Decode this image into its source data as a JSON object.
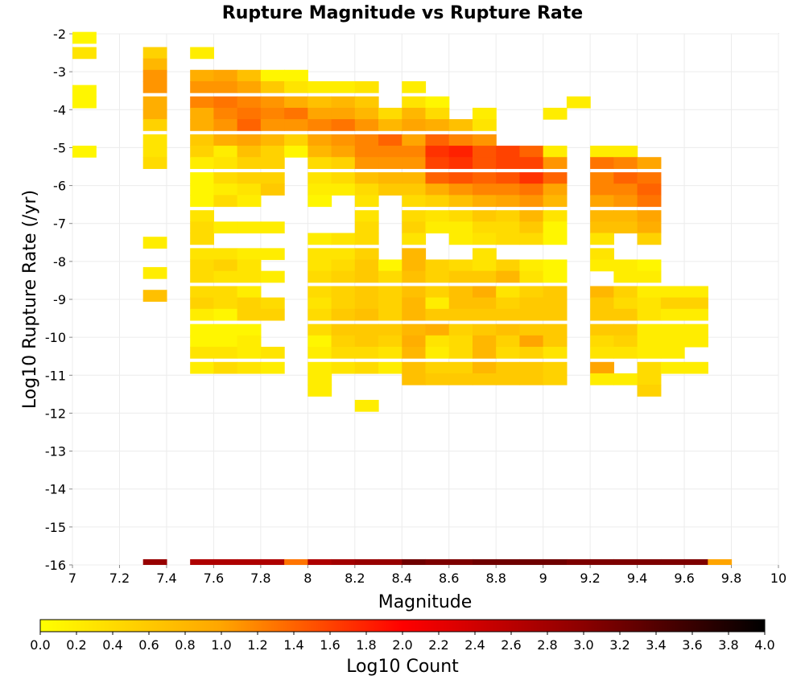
{
  "chart_data": {
    "type": "heatmap",
    "title": "Rupture Magnitude vs Rupture Rate",
    "xlabel": "Magnitude",
    "ylabel": "Log10 Rupture Rate (/yr)",
    "xlim": [
      7,
      10
    ],
    "ylim": [
      -16,
      -2
    ],
    "x_ticks": [
      "7",
      "7.2",
      "7.4",
      "7.6",
      "7.8",
      "8",
      "8.2",
      "8.4",
      "8.6",
      "8.8",
      "9",
      "9.2",
      "9.4",
      "9.6",
      "9.8",
      "10"
    ],
    "y_ticks": [
      "-2",
      "-3",
      "-4",
      "-5",
      "-6",
      "-7",
      "-8",
      "-9",
      "-10",
      "-11",
      "-12",
      "-13",
      "-14",
      "-15",
      "-16"
    ],
    "x_bin_width": 0.1,
    "y_bin_height": 0.3,
    "grid": true,
    "colorbar": {
      "label": "Log10 Count",
      "range": [
        0,
        4
      ],
      "ticks": [
        "0.0",
        "0.2",
        "0.4",
        "0.6",
        "0.8",
        "1.0",
        "1.2",
        "1.4",
        "1.6",
        "1.8",
        "2.0",
        "2.2",
        "2.4",
        "2.6",
        "2.8",
        "3.0",
        "3.2",
        "3.4",
        "3.6",
        "3.8",
        "4.0"
      ],
      "colors": [
        "#ffff00",
        "#ffa500",
        "#ff0000",
        "#8b0000",
        "#000000"
      ]
    },
    "columns": [
      {
        "x": 7.0,
        "y": [
          -2.1,
          -2.5,
          -3.5,
          -3.8,
          -5.1
        ],
        "v": [
          0.1,
          0.3,
          0.1,
          0.1,
          0.1
        ]
      },
      {
        "x": 7.3,
        "y": [
          -2.5,
          -2.8,
          -3.1,
          -3.4,
          -3.8,
          -4.1,
          -4.4,
          -4.8,
          -5.1,
          -5.4,
          -7.5,
          -8.3,
          -8.9
        ],
        "v": [
          0.5,
          0.8,
          1.1,
          1.1,
          0.9,
          0.9,
          0.5,
          0.3,
          0.3,
          0.4,
          0.2,
          0.2,
          0.7
        ]
      },
      {
        "x": 7.5,
        "y": [
          -2.5,
          -3.1,
          -3.4,
          -3.8,
          -4.1,
          -4.4,
          -4.8,
          -5.1,
          -5.4,
          -5.8,
          -6.1,
          -6.4,
          -6.8,
          -7.1,
          -7.4,
          -7.8,
          -8.1,
          -8.4,
          -8.8,
          -9.1,
          -9.4,
          -9.8,
          -10.1,
          -10.4,
          -10.8
        ],
        "v": [
          0.2,
          0.9,
          1.1,
          1.2,
          0.9,
          0.9,
          0.6,
          0.5,
          0.2,
          0.1,
          0.1,
          0.1,
          0.3,
          0.4,
          0.4,
          0.3,
          0.4,
          0.4,
          0.4,
          0.5,
          0.2,
          0.1,
          0.1,
          0.3,
          0.2
        ]
      },
      {
        "x": 7.6,
        "y": [
          -3.1,
          -3.4,
          -3.8,
          -4.1,
          -4.4,
          -4.8,
          -5.1,
          -5.4,
          -5.8,
          -6.1,
          -6.4,
          -7.1,
          -7.8,
          -8.1,
          -8.4,
          -8.8,
          -9.1,
          -9.4,
          -9.8,
          -10.1,
          -10.4,
          -10.8
        ],
        "v": [
          1.0,
          1.1,
          1.3,
          1.2,
          1.1,
          0.9,
          0.2,
          0.3,
          0.4,
          0.2,
          0.4,
          0.2,
          0.3,
          0.5,
          0.3,
          0.4,
          0.4,
          0.1,
          0.1,
          0.1,
          0.3,
          0.4
        ]
      },
      {
        "x": 7.7,
        "y": [
          -3.1,
          -3.4,
          -3.8,
          -4.1,
          -4.4,
          -4.8,
          -5.1,
          -5.4,
          -5.8,
          -6.1,
          -6.4,
          -7.1,
          -7.8,
          -8.1,
          -8.4,
          -8.8,
          -9.1,
          -9.4,
          -9.8,
          -10.1,
          -10.4,
          -10.8
        ],
        "v": [
          0.7,
          1.0,
          1.2,
          1.3,
          1.4,
          1.0,
          0.7,
          0.5,
          0.5,
          0.3,
          0.2,
          0.2,
          0.2,
          0.3,
          0.3,
          0.2,
          0.5,
          0.5,
          0.1,
          0.2,
          0.2,
          0.3
        ]
      },
      {
        "x": 7.8,
        "y": [
          -3.1,
          -3.4,
          -3.8,
          -4.1,
          -4.4,
          -4.8,
          -5.1,
          -5.4,
          -5.8,
          -6.1,
          -7.1,
          -7.8,
          -8.4,
          -9.1,
          -9.4,
          -10.4,
          -10.8
        ],
        "v": [
          0.1,
          0.6,
          1.1,
          1.2,
          1.1,
          0.8,
          0.5,
          0.5,
          0.5,
          0.6,
          0.2,
          0.2,
          0.2,
          0.4,
          0.5,
          0.3,
          0.2
        ]
      },
      {
        "x": 7.9,
        "y": [
          -3.1,
          -3.4,
          -3.8,
          -4.1,
          -4.4,
          -4.8,
          -5.1
        ],
        "v": [
          0.1,
          0.3,
          0.9,
          1.3,
          1.1,
          0.5,
          0.1
        ]
      },
      {
        "x": 8.0,
        "y": [
          -3.4,
          -3.8,
          -4.1,
          -4.4,
          -4.8,
          -5.1,
          -5.4,
          -5.8,
          -6.1,
          -6.4,
          -7.4,
          -7.8,
          -8.1,
          -8.4,
          -8.8,
          -9.1,
          -9.4,
          -9.8,
          -10.1,
          -10.4,
          -10.8,
          -11.1,
          -11.4
        ],
        "v": [
          0.2,
          0.7,
          1.0,
          1.2,
          1.0,
          0.8,
          0.4,
          0.3,
          0.2,
          0.1,
          0.2,
          0.3,
          0.3,
          0.4,
          0.4,
          0.3,
          0.4,
          0.4,
          0.1,
          0.2,
          0.2,
          0.2,
          0.2
        ]
      },
      {
        "x": 8.1,
        "y": [
          -3.4,
          -3.8,
          -4.1,
          -4.4,
          -4.8,
          -5.1,
          -5.4,
          -5.8,
          -6.1,
          -7.4,
          -7.8,
          -8.1,
          -8.4,
          -8.8,
          -9.1,
          -9.4,
          -9.8,
          -10.1,
          -10.4,
          -10.8
        ],
        "v": [
          0.2,
          0.8,
          1.0,
          1.3,
          1.1,
          1.0,
          0.5,
          0.4,
          0.2,
          0.3,
          0.3,
          0.4,
          0.5,
          0.5,
          0.5,
          0.6,
          0.6,
          0.5,
          0.4,
          0.3
        ]
      },
      {
        "x": 8.2,
        "y": [
          -3.4,
          -3.8,
          -4.1,
          -4.4,
          -4.8,
          -5.1,
          -5.4,
          -5.8,
          -6.1,
          -6.4,
          -6.8,
          -7.1,
          -7.4,
          -7.8,
          -8.1,
          -8.4,
          -8.8,
          -9.1,
          -9.4,
          -9.8,
          -10.1,
          -10.4,
          -10.8,
          -11.8
        ],
        "v": [
          0.3,
          0.6,
          0.8,
          1.1,
          1.2,
          1.2,
          1.1,
          0.7,
          0.4,
          0.3,
          0.3,
          0.4,
          0.4,
          0.5,
          0.6,
          0.6,
          0.6,
          0.6,
          0.7,
          0.6,
          0.6,
          0.4,
          0.4,
          0.2
        ]
      },
      {
        "x": 8.3,
        "y": [
          -4.1,
          -4.4,
          -4.8,
          -5.1,
          -5.4,
          -5.8,
          -6.1,
          -8.1,
          -8.4,
          -8.8,
          -9.1,
          -9.4,
          -9.8,
          -10.1,
          -10.4,
          -10.8
        ],
        "v": [
          0.4,
          0.8,
          1.4,
          1.2,
          1.1,
          0.8,
          0.6,
          0.1,
          0.4,
          0.5,
          0.5,
          0.5,
          0.6,
          0.5,
          0.3,
          0.2
        ]
      },
      {
        "x": 8.4,
        "y": [
          -3.4,
          -3.8,
          -4.1,
          -4.4,
          -4.8,
          -5.1,
          -5.4,
          -5.8,
          -6.1,
          -6.4,
          -6.8,
          -7.1,
          -7.4,
          -7.8,
          -8.1,
          -8.4,
          -8.8,
          -9.1,
          -9.4,
          -9.8,
          -10.1,
          -10.4,
          -10.8,
          -11.1
        ],
        "v": [
          0.2,
          0.3,
          0.8,
          1.0,
          1.0,
          1.2,
          1.1,
          0.8,
          0.6,
          0.4,
          0.4,
          0.5,
          0.3,
          0.8,
          0.8,
          0.7,
          0.7,
          0.8,
          0.8,
          0.8,
          0.9,
          0.8,
          0.7,
          0.7
        ]
      },
      {
        "x": 8.5,
        "y": [
          -3.8,
          -4.1,
          -4.4,
          -4.8,
          -5.1,
          -5.4,
          -5.8,
          -6.1,
          -6.4,
          -6.8,
          -7.1,
          -8.1,
          -8.4,
          -8.8,
          -9.1,
          -9.4,
          -9.8,
          -10.1,
          -10.4,
          -10.8,
          -11.1
        ],
        "v": [
          0.1,
          0.4,
          0.9,
          1.4,
          1.7,
          1.6,
          1.4,
          0.9,
          0.5,
          0.3,
          0.2,
          0.5,
          0.5,
          0.5,
          0.2,
          0.6,
          0.9,
          0.3,
          0.2,
          0.5,
          0.6
        ]
      },
      {
        "x": 8.6,
        "y": [
          -4.4,
          -4.8,
          -5.1,
          -5.4,
          -5.8,
          -6.1,
          -6.4,
          -6.8,
          -7.1,
          -7.4,
          -8.1,
          -8.4,
          -8.8,
          -9.1,
          -9.4,
          -9.8,
          -10.1,
          -10.4,
          -10.8,
          -11.1
        ],
        "v": [
          0.7,
          1.2,
          1.8,
          1.7,
          1.5,
          1.1,
          0.7,
          0.4,
          0.2,
          0.2,
          0.4,
          0.6,
          0.7,
          0.7,
          0.6,
          0.5,
          0.4,
          0.4,
          0.5,
          0.6
        ]
      },
      {
        "x": 8.7,
        "y": [
          -4.1,
          -4.4,
          -4.8,
          -5.1,
          -5.4,
          -5.8,
          -6.1,
          -6.4,
          -6.8,
          -7.1,
          -7.4,
          -7.8,
          -8.1,
          -8.4,
          -8.8,
          -9.1,
          -9.4,
          -9.8,
          -10.1,
          -10.4,
          -10.8,
          -11.1
        ],
        "v": [
          0.2,
          0.3,
          1.1,
          1.5,
          1.5,
          1.4,
          1.2,
          0.9,
          0.6,
          0.4,
          0.3,
          0.3,
          0.3,
          0.6,
          0.9,
          0.7,
          0.6,
          0.6,
          0.8,
          0.8,
          0.8,
          0.6
        ]
      },
      {
        "x": 8.8,
        "y": [
          -5.1,
          -5.4,
          -5.8,
          -6.1,
          -6.4,
          -6.8,
          -7.1,
          -7.4,
          -8.1,
          -8.4,
          -8.8,
          -9.1,
          -9.4,
          -9.8,
          -10.1,
          -10.4,
          -10.8,
          -11.1
        ],
        "v": [
          1.6,
          1.6,
          1.5,
          1.2,
          1.0,
          0.5,
          0.4,
          0.4,
          0.5,
          0.8,
          0.3,
          0.5,
          0.6,
          0.7,
          0.5,
          0.4,
          0.6,
          0.6
        ]
      },
      {
        "x": 8.9,
        "y": [
          -5.1,
          -5.4,
          -5.8,
          -6.1,
          -6.4,
          -6.8,
          -7.1,
          -7.4,
          -8.1,
          -8.4,
          -8.8,
          -9.1,
          -9.4,
          -9.8,
          -10.1,
          -10.4,
          -10.8,
          -11.1
        ],
        "v": [
          1.4,
          1.6,
          1.7,
          1.3,
          1.1,
          0.8,
          0.6,
          0.4,
          0.2,
          0.3,
          0.5,
          0.6,
          0.6,
          0.6,
          1.0,
          0.5,
          0.6,
          0.6
        ]
      },
      {
        "x": 9.0,
        "y": [
          -4.1,
          -5.1,
          -5.4,
          -5.8,
          -6.1,
          -6.4,
          -6.8,
          -7.1,
          -7.4,
          -8.1,
          -8.4,
          -8.8,
          -9.1,
          -9.4,
          -9.8,
          -10.1,
          -10.4,
          -10.8,
          -11.1
        ],
        "v": [
          0.2,
          0.2,
          1.1,
          1.4,
          1.0,
          0.8,
          0.3,
          0.1,
          0.1,
          0.1,
          0.1,
          0.6,
          0.6,
          0.6,
          0.6,
          0.6,
          0.3,
          0.5,
          0.5
        ]
      },
      {
        "x": 9.1,
        "y": [
          -3.8
        ],
        "v": [
          0.2
        ]
      },
      {
        "x": 9.2,
        "y": [
          -5.1,
          -5.4,
          -5.8,
          -6.1,
          -6.4,
          -6.8,
          -7.1,
          -7.4,
          -7.8,
          -8.1,
          -8.8,
          -9.1,
          -9.4,
          -9.8,
          -10.1,
          -10.4,
          -10.8,
          -11.1
        ],
        "v": [
          0.2,
          1.3,
          1.2,
          1.2,
          1.0,
          0.8,
          0.7,
          0.3,
          0.3,
          0.2,
          0.8,
          0.6,
          0.6,
          0.6,
          0.4,
          0.3,
          1.0,
          0.2
        ]
      },
      {
        "x": 9.3,
        "y": [
          -5.1,
          -5.4,
          -5.8,
          -6.1,
          -6.4,
          -6.8,
          -7.1,
          -8.1,
          -8.4,
          -8.8,
          -9.1,
          -9.4,
          -9.8,
          -10.1,
          -10.4,
          -11.1
        ],
        "v": [
          0.2,
          1.2,
          1.4,
          1.2,
          1.1,
          0.8,
          0.7,
          0.2,
          0.2,
          0.5,
          0.4,
          0.6,
          0.6,
          0.5,
          0.3,
          0.2
        ]
      },
      {
        "x": 9.4,
        "y": [
          -5.4,
          -5.8,
          -6.1,
          -6.4,
          -6.8,
          -7.1,
          -7.4,
          -8.1,
          -8.4,
          -8.8,
          -9.1,
          -9.4,
          -9.8,
          -10.1,
          -10.4,
          -10.8,
          -11.1,
          -11.4
        ],
        "v": [
          1.0,
          1.3,
          1.4,
          1.3,
          1.0,
          0.9,
          0.5,
          0.1,
          0.2,
          0.2,
          0.3,
          0.3,
          0.2,
          0.2,
          0.2,
          0.4,
          0.4,
          0.5
        ]
      },
      {
        "x": 9.5,
        "y": [
          -8.8,
          -9.1,
          -9.4,
          -9.8,
          -10.1,
          -10.4,
          -10.8
        ],
        "v": [
          0.2,
          0.5,
          0.2,
          0.2,
          0.2,
          0.2,
          0.2
        ]
      },
      {
        "x": 9.6,
        "y": [
          -8.8,
          -9.1,
          -9.4,
          -9.8,
          -10.1,
          -10.8
        ],
        "v": [
          0.2,
          0.5,
          0.2,
          0.2,
          0.2,
          0.2
        ]
      }
    ],
    "bottom_row": {
      "y": -16.0,
      "x": [
        7.3,
        7.5,
        7.6,
        7.7,
        7.8,
        7.9,
        8.0,
        8.1,
        8.2,
        8.3,
        8.4,
        8.5,
        8.6,
        8.7,
        8.8,
        8.9,
        9.0,
        9.1,
        9.2,
        9.3,
        9.4,
        9.5,
        9.6,
        9.7
      ],
      "v": [
        2.9,
        2.7,
        2.7,
        2.7,
        2.7,
        1.3,
        2.7,
        2.8,
        2.9,
        2.9,
        3.2,
        3.1,
        3.1,
        3.2,
        3.2,
        3.2,
        3.2,
        3.1,
        3.1,
        3.1,
        3.1,
        3.1,
        3.1,
        1.0
      ]
    }
  }
}
